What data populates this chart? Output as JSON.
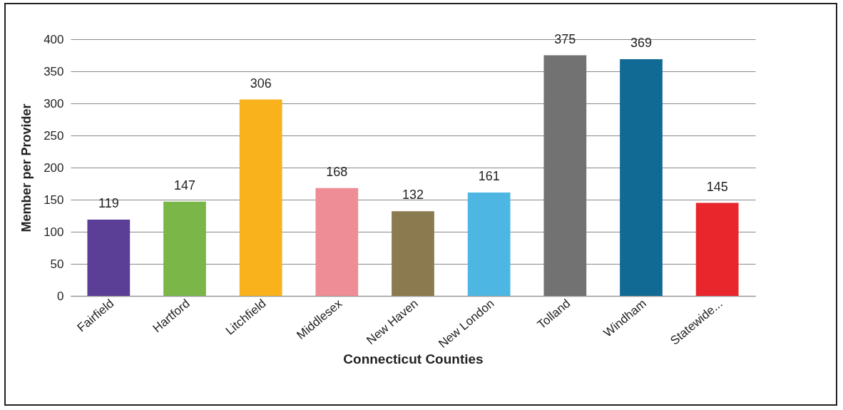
{
  "chart_data": {
    "type": "bar",
    "xlabel": "Connecticut Counties",
    "ylabel": "Member per Provider",
    "categories": [
      "Fairfield",
      "Hartford",
      "Litchfield",
      "Middlesex",
      "New Haven",
      "New London",
      "Tolland",
      "Windham",
      "Statewide..."
    ],
    "values": [
      119,
      147,
      306,
      168,
      132,
      161,
      375,
      369,
      145
    ],
    "colors": [
      "#5b3f97",
      "#7ab648",
      "#f9b21b",
      "#ee8d95",
      "#8b7a4f",
      "#4db6e3",
      "#727272",
      "#116a94",
      "#e8262c"
    ],
    "ylim": [
      0,
      400
    ],
    "yticks": [
      0,
      50,
      100,
      150,
      200,
      250,
      300,
      350,
      400
    ],
    "grid": "y",
    "data_labels": true
  }
}
